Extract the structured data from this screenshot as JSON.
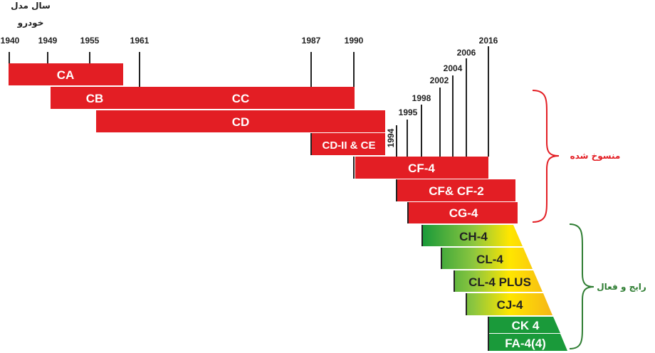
{
  "header": {
    "line1": "سال مدل",
    "line2": "خودرو"
  },
  "years": {
    "y1940": "1940",
    "y1949": "1949",
    "y1955": "1955",
    "y1961": "1961",
    "y1987": "1987",
    "y1990": "1990",
    "y1994": "1994",
    "y1995": "1995",
    "y1998": "1998",
    "y2002": "2002",
    "y2004": "2004",
    "y2006": "2006",
    "y2016": "2016"
  },
  "obsolete": {
    "label": "منسوخ شده",
    "categories": [
      "CA",
      "CB",
      "CC",
      "CD",
      "CD-II & CE",
      "CF-4",
      "CF& CF-2",
      "CG-4"
    ]
  },
  "active": {
    "label": "رایج و فعال",
    "categories": [
      "CH-4",
      "CL-4",
      "CL-4 PLUS",
      "CJ-4",
      "CK 4",
      "FA-4(4)"
    ]
  },
  "colors": {
    "obsolete": "#e31e24",
    "active_green": "#1a9a3a",
    "active_yellow": "#ffe600",
    "active_orange": "#f2a51f",
    "obsolete_brace": "#e31e24",
    "active_brace": "#2e7d32"
  }
}
